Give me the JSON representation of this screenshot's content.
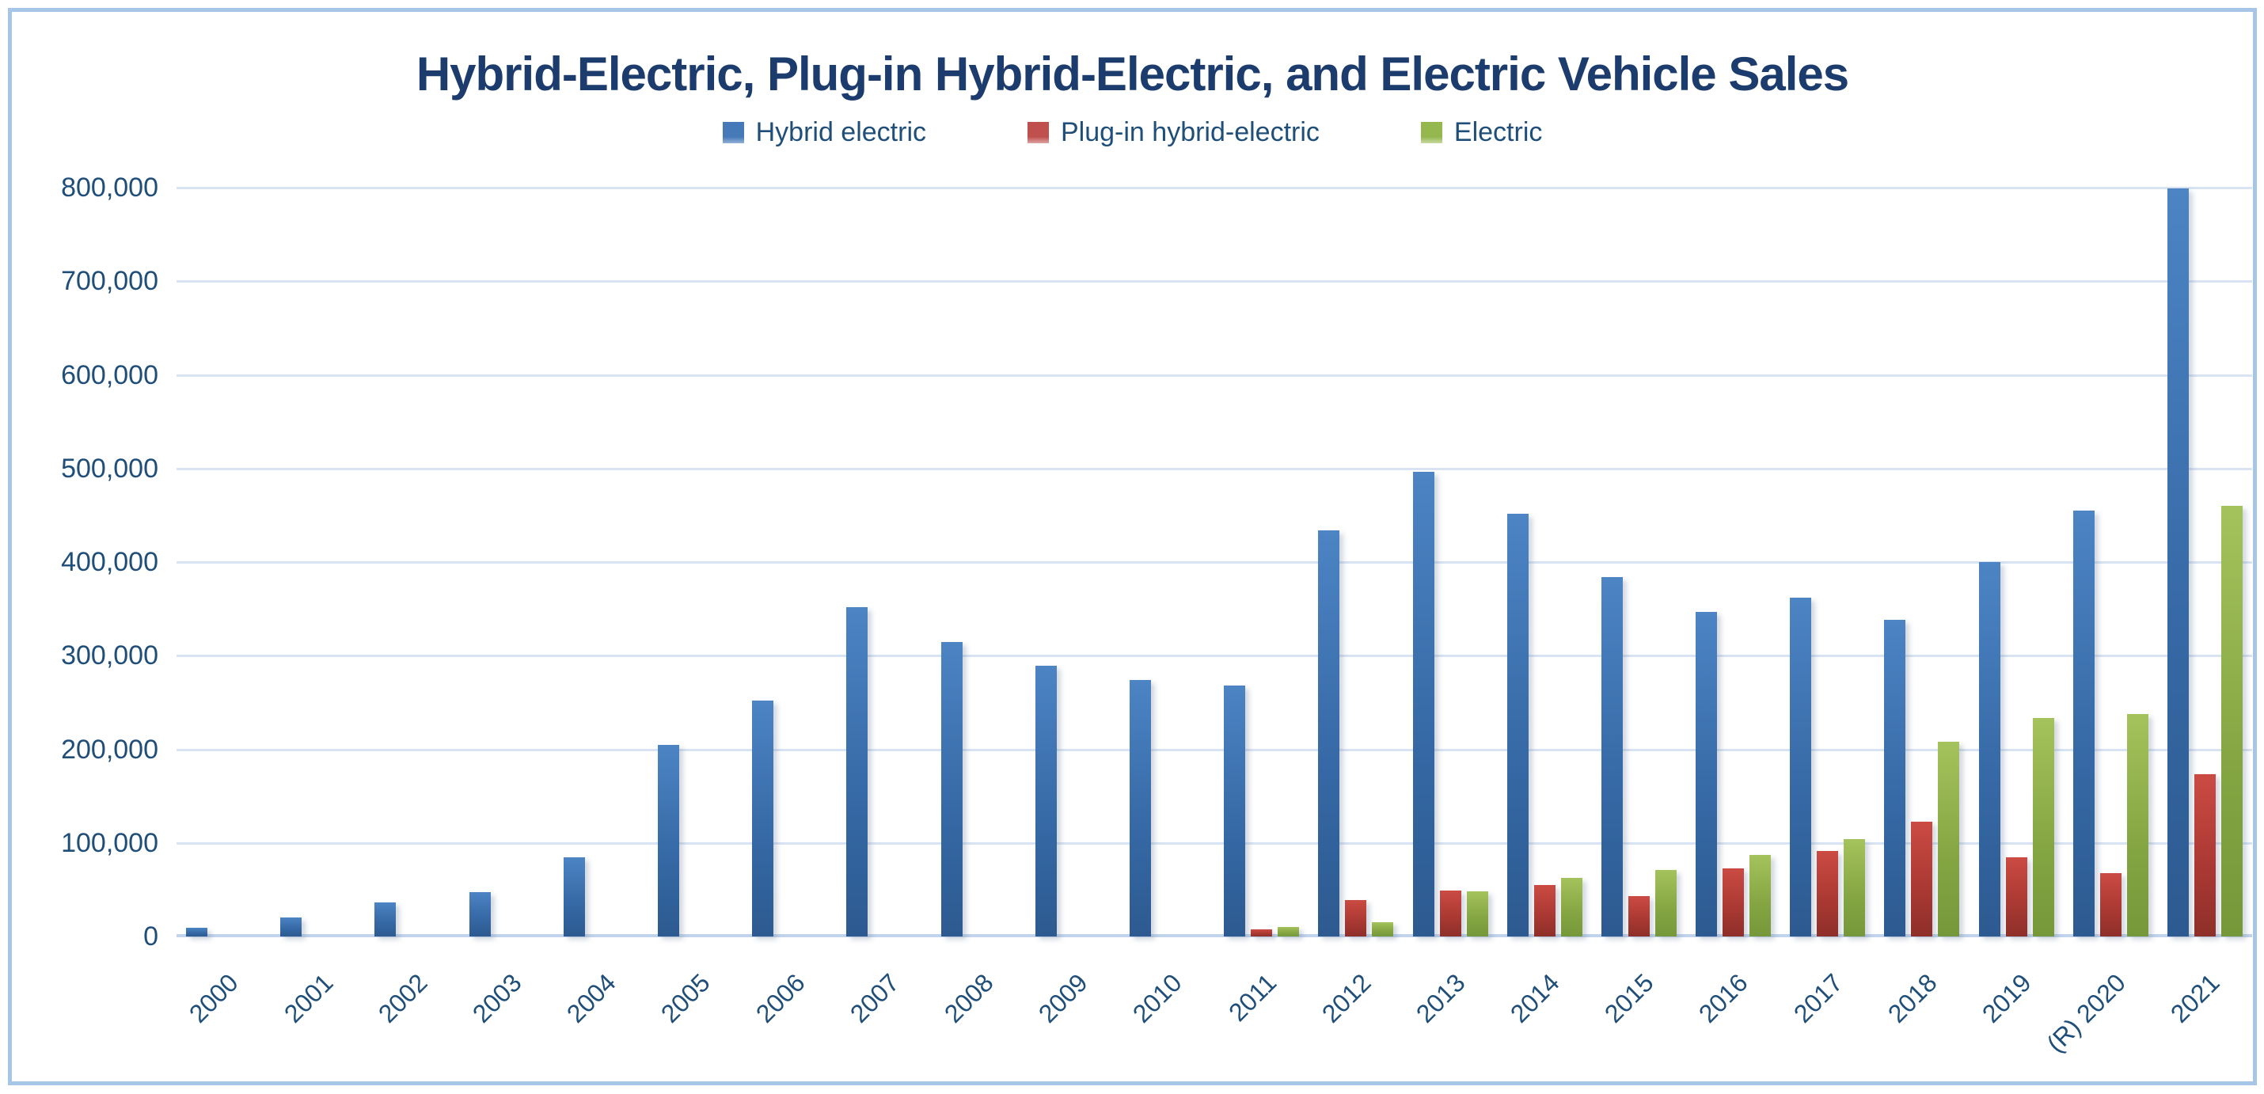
{
  "chart_data": {
    "type": "bar",
    "title": "Hybrid-Electric, Plug-in Hybrid-Electric, and Electric Vehicle Sales",
    "legend_position": "top-center",
    "grid": "horizontal",
    "ylim": [
      0,
      800000
    ],
    "ytick_interval": 100000,
    "ytick_labels": [
      "800,000",
      "700,000",
      "600,000",
      "500,000",
      "400,000",
      "300,000",
      "200,000",
      "100,000",
      "0"
    ],
    "categories": [
      "2000",
      "2001",
      "2002",
      "2003",
      "2004",
      "2005",
      "2006",
      "2007",
      "2008",
      "2009",
      "2010",
      "2011",
      "2012",
      "2013",
      "2014",
      "2015",
      "2016",
      "2017",
      "2018",
      "2019",
      "(R) 2020",
      "2021"
    ],
    "series": [
      {
        "name": "Hybrid electric",
        "color": "#4579B8",
        "values": [
          9350,
          20300,
          36000,
          47600,
          84200,
          205000,
          252000,
          352000,
          315000,
          289000,
          274000,
          268000,
          434000,
          496000,
          452000,
          384000,
          347000,
          362000,
          338000,
          400000,
          455000,
          799000
        ]
      },
      {
        "name": "Plug-in hybrid-electric",
        "color": "#C0504D",
        "values": [
          null,
          null,
          null,
          null,
          null,
          null,
          null,
          null,
          null,
          null,
          null,
          8000,
          39000,
          49000,
          55000,
          43000,
          73000,
          91000,
          123000,
          85000,
          68000,
          173000
        ]
      },
      {
        "name": "Electric",
        "color": "#9BBB59",
        "values": [
          null,
          null,
          null,
          null,
          null,
          null,
          null,
          null,
          null,
          null,
          null,
          10000,
          15000,
          48000,
          63000,
          71000,
          87000,
          104000,
          208000,
          233000,
          238000,
          460000
        ]
      }
    ],
    "colors": {
      "title_text": "#1d3c6e",
      "axis_text": "#1f4e79",
      "gridline": "#d8e3f3",
      "frame_border": "#a7c5e7",
      "background": "#ffffff"
    }
  }
}
